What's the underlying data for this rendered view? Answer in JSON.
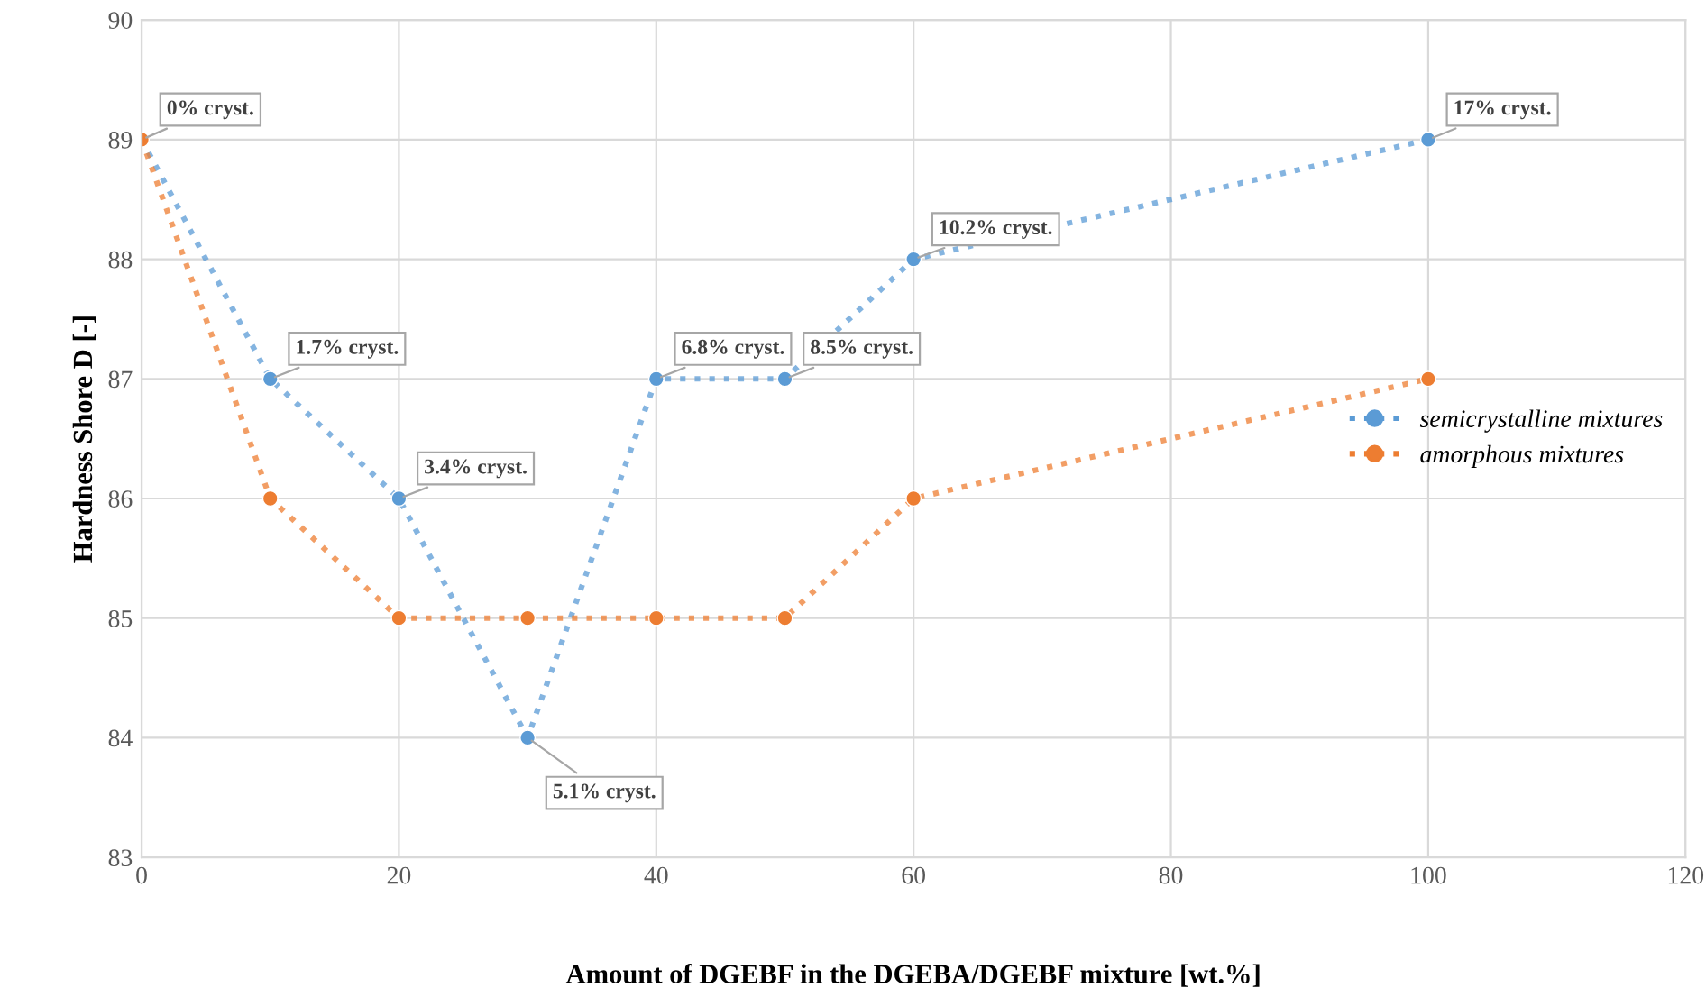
{
  "chart_data": {
    "type": "line",
    "xlabel": "Amount of DGEBF in the DGEBA/DGEBF mixture [wt.%]",
    "ylabel": "Hardness Shore D [-]",
    "x": [
      0,
      10,
      20,
      30,
      40,
      50,
      60,
      100
    ],
    "series": [
      {
        "name": "semicrystalline mixtures",
        "color": "#5b9bd5",
        "values": [
          89,
          87,
          86,
          84,
          87,
          87,
          88,
          89
        ]
      },
      {
        "name": "amorphous mixtures",
        "color": "#ed7d31",
        "values": [
          89,
          86,
          85,
          85,
          85,
          85,
          86,
          87
        ]
      }
    ],
    "annotations": [
      {
        "text": "0% cryst.",
        "x": 0,
        "y": 89
      },
      {
        "text": "1.7% cryst.",
        "x": 10,
        "y": 87
      },
      {
        "text": "3.4% cryst.",
        "x": 20,
        "y": 86
      },
      {
        "text": "5.1% cryst.",
        "x": 30,
        "y": 84
      },
      {
        "text": "6.8% cryst.",
        "x": 40,
        "y": 87
      },
      {
        "text": "8.5% cryst.",
        "x": 50,
        "y": 87
      },
      {
        "text": "10.2% cryst.",
        "x": 60,
        "y": 88
      },
      {
        "text": "17% cryst.",
        "x": 100,
        "y": 89
      }
    ],
    "xlim": [
      0,
      120
    ],
    "xticks": [
      0,
      20,
      40,
      60,
      80,
      100,
      120
    ],
    "ylim": [
      83,
      90
    ],
    "yticks": [
      83,
      84,
      85,
      86,
      87,
      88,
      89,
      90
    ],
    "grid": true,
    "legend": "right",
    "marker": "circle",
    "line_style": "dotted"
  }
}
